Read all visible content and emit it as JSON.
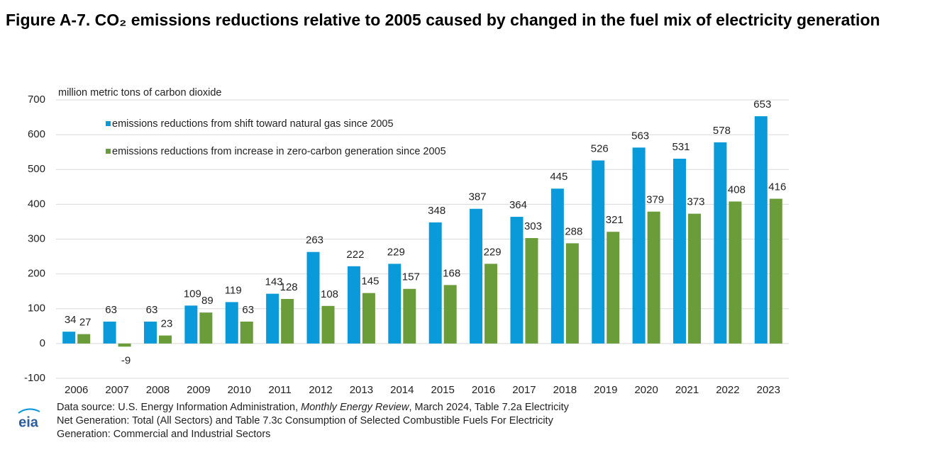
{
  "chart_data": {
    "type": "bar",
    "title": "Figure A-7. CO₂ emissions reductions relative to 2005 caused by changed in the fuel mix of electricity generation",
    "y_axis_label": "million metric tons of carbon dioxide",
    "categories": [
      "2006",
      "2007",
      "2008",
      "2009",
      "2010",
      "2011",
      "2012",
      "2013",
      "2014",
      "2015",
      "2016",
      "2017",
      "2018",
      "2019",
      "2020",
      "2021",
      "2022",
      "2023"
    ],
    "series": [
      {
        "name": "emissions reductions from shift toward natural gas since 2005",
        "color": "#0a9ad9",
        "values": [
          34,
          63,
          63,
          109,
          119,
          143,
          263,
          222,
          229,
          348,
          387,
          364,
          445,
          526,
          563,
          531,
          578,
          653
        ]
      },
      {
        "name": "emissions reductions from increase in zero-carbon generation since 2005",
        "color": "#6a9c3a",
        "values": [
          27,
          -9,
          23,
          89,
          63,
          128,
          108,
          145,
          157,
          168,
          229,
          303,
          288,
          321,
          379,
          373,
          408,
          416
        ]
      }
    ],
    "ylim": [
      -100,
      700
    ],
    "yticks": [
      -100,
      0,
      100,
      200,
      300,
      400,
      500,
      600,
      700
    ],
    "grid": true,
    "legend": "top-left",
    "source_lines": [
      [
        "Data source: U.S. Energy Information Administration, ",
        "Monthly Energy Review",
        ", March 2024, Table 7.2a Electricity"
      ],
      "Net Generation: Total (All Sectors) and Table 7.3c Consumption of Selected Combustible Fuels For Electricity",
      "Generation: Commercial and Industrial Sectors"
    ],
    "logo": "eia"
  }
}
